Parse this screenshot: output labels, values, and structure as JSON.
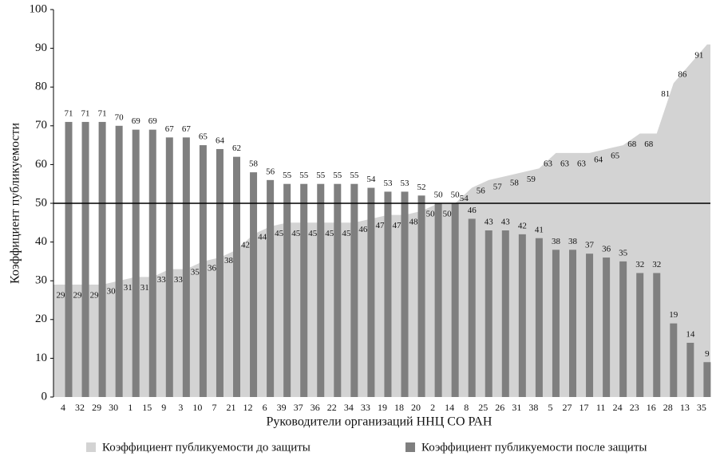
{
  "chart_data": {
    "type": "bar_area",
    "x_label": "Руководители организаций ННЦ СО РАН",
    "y_label": "Коэффициент публикуемости",
    "categories": [
      "4",
      "32",
      "29",
      "30",
      "1",
      "15",
      "9",
      "3",
      "10",
      "7",
      "21",
      "12",
      "6",
      "39",
      "37",
      "36",
      "22",
      "34",
      "33",
      "19",
      "18",
      "20",
      "2",
      "14",
      "8",
      "25",
      "26",
      "31",
      "38",
      "5",
      "27",
      "17",
      "11",
      "24",
      "23",
      "16",
      "28",
      "13",
      "35"
    ],
    "series": [
      {
        "name": "Коэффициент публикуемости до защиты",
        "color": "#d3d3d3",
        "kind": "area",
        "values": [
          29,
          29,
          29,
          30,
          31,
          31,
          33,
          33,
          35,
          36,
          38,
          42,
          44,
          45,
          45,
          45,
          45,
          45,
          46,
          47,
          47,
          48,
          50,
          50,
          54,
          56,
          57,
          58,
          59,
          63,
          63,
          63,
          64,
          65,
          68,
          68,
          81,
          86,
          91
        ]
      },
      {
        "name": "Коэффициент публикуемости после защиты",
        "color": "#7f7f7f",
        "kind": "bar",
        "values": [
          71,
          71,
          71,
          70,
          69,
          69,
          67,
          67,
          65,
          64,
          62,
          58,
          56,
          55,
          55,
          55,
          55,
          55,
          54,
          53,
          53,
          52,
          50,
          50,
          46,
          43,
          43,
          42,
          41,
          38,
          38,
          37,
          36,
          35,
          32,
          32,
          19,
          14,
          9
        ]
      }
    ],
    "reference_line": 50,
    "ylim": [
      0,
      100
    ],
    "yticks": [
      0,
      10,
      20,
      30,
      40,
      50,
      60,
      70,
      80,
      90,
      100
    ]
  }
}
